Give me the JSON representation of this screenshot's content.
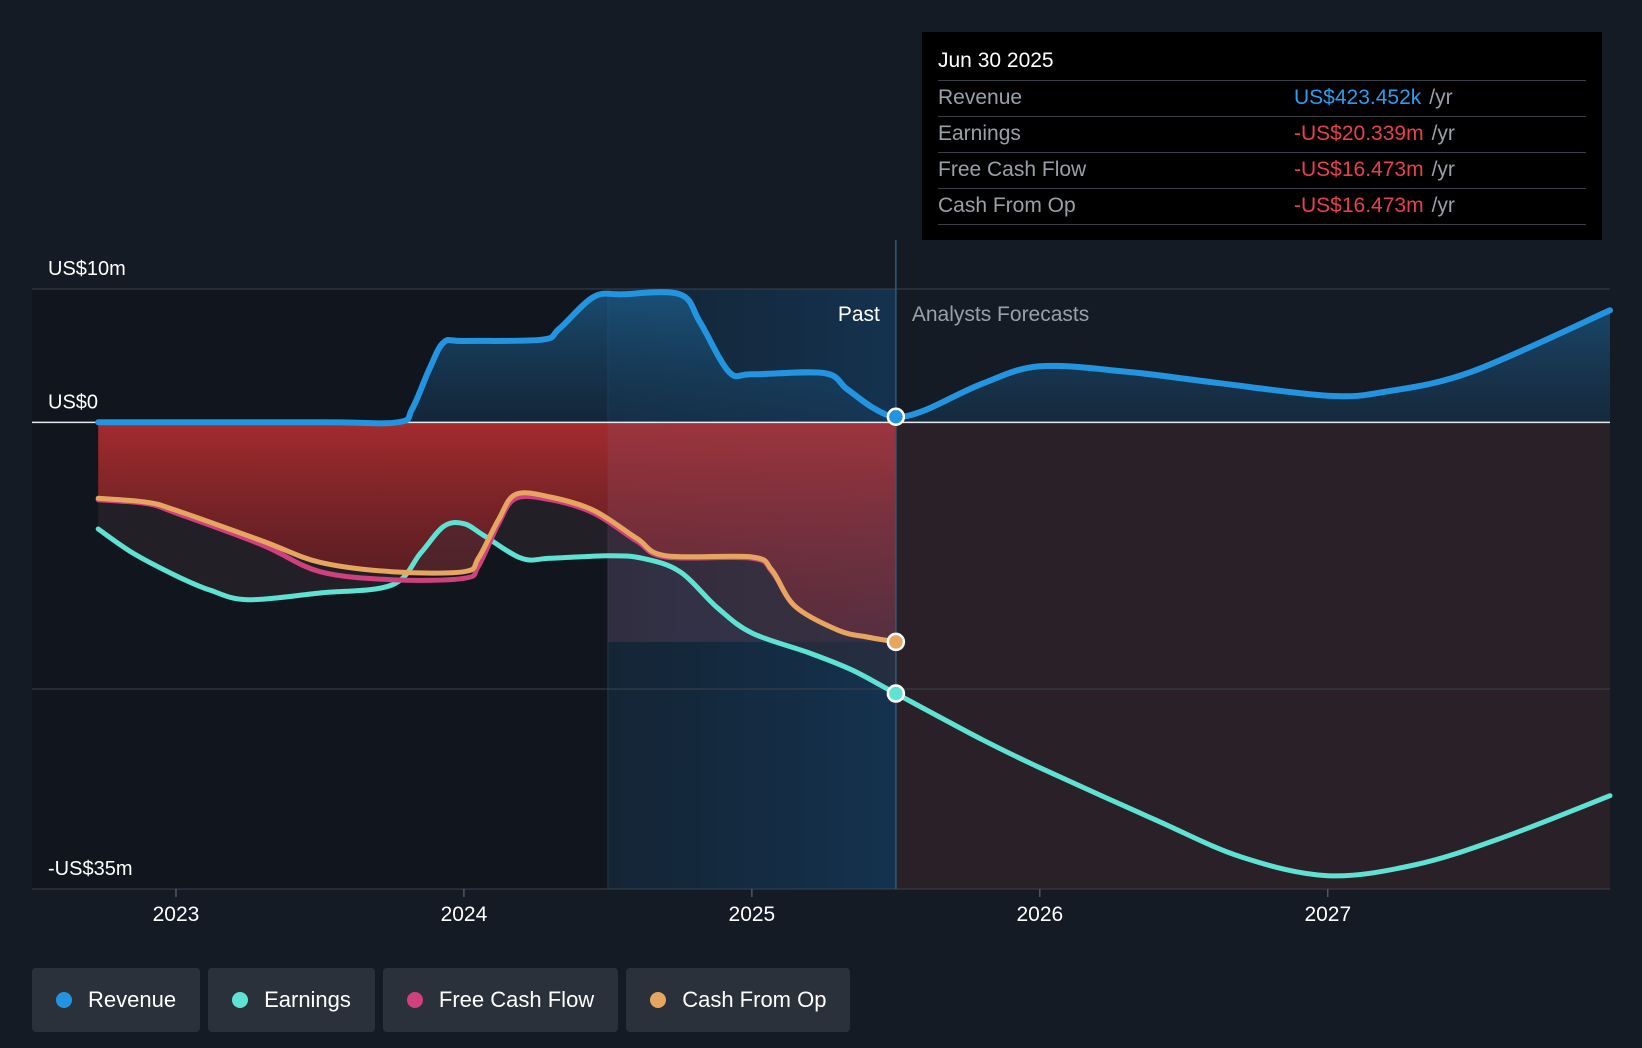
{
  "chart_data": {
    "type": "line",
    "title": "",
    "xlabel": "",
    "ylabel": "",
    "x_ticks": [
      "2023",
      "2024",
      "2025",
      "2026",
      "2027"
    ],
    "xlim": [
      2022.5,
      2027.98
    ],
    "ylim": [
      -35,
      10
    ],
    "y_axis_labels": [
      "US$10m",
      "US$0",
      "-US$35m"
    ],
    "divider_date": 2025.5,
    "past_shaded_from": 2024.5,
    "past_label": "Past",
    "forecast_label": "Analysts Forecasts",
    "series": [
      {
        "name": "Revenue",
        "unit": "US$m",
        "color": "#2394e0",
        "points": [
          [
            2022.73,
            0
          ],
          [
            2023.5,
            0
          ],
          [
            2023.77,
            0
          ],
          [
            2023.82,
            1
          ],
          [
            2023.88,
            4
          ],
          [
            2023.93,
            6
          ],
          [
            2024.0,
            6.1
          ],
          [
            2024.27,
            6.2
          ],
          [
            2024.33,
            7
          ],
          [
            2024.45,
            9.4
          ],
          [
            2024.55,
            9.6
          ],
          [
            2024.75,
            9.6
          ],
          [
            2024.82,
            7.5
          ],
          [
            2024.92,
            3.8
          ],
          [
            2025.0,
            3.6
          ],
          [
            2025.25,
            3.7
          ],
          [
            2025.33,
            2.5
          ],
          [
            2025.42,
            1.1
          ],
          [
            2025.5,
            0.42
          ],
          [
            2025.6,
            0.9
          ],
          [
            2025.8,
            2.9
          ],
          [
            2026.0,
            4.2
          ],
          [
            2026.3,
            3.8
          ],
          [
            2026.6,
            3.0
          ],
          [
            2027.0,
            2.0
          ],
          [
            2027.2,
            2.3
          ],
          [
            2027.5,
            3.8
          ],
          [
            2027.98,
            8.4
          ]
        ]
      },
      {
        "name": "Earnings",
        "unit": "US$m",
        "color": "#5ee2d4",
        "points": [
          [
            2022.73,
            -8
          ],
          [
            2022.85,
            -9.8
          ],
          [
            2023.0,
            -11.5
          ],
          [
            2023.12,
            -12.6
          ],
          [
            2023.25,
            -13.3
          ],
          [
            2023.5,
            -12.8
          ],
          [
            2023.75,
            -12.2
          ],
          [
            2023.85,
            -9.8
          ],
          [
            2023.93,
            -7.8
          ],
          [
            2024.0,
            -7.6
          ],
          [
            2024.07,
            -8.5
          ],
          [
            2024.2,
            -10.2
          ],
          [
            2024.3,
            -10.2
          ],
          [
            2024.5,
            -10
          ],
          [
            2024.62,
            -10.2
          ],
          [
            2024.75,
            -11.2
          ],
          [
            2024.88,
            -13.9
          ],
          [
            2025.0,
            -15.8
          ],
          [
            2025.2,
            -17.3
          ],
          [
            2025.35,
            -18.6
          ],
          [
            2025.5,
            -20.34
          ],
          [
            2025.8,
            -23.8
          ],
          [
            2026.0,
            -25.9
          ],
          [
            2026.4,
            -29.8
          ],
          [
            2026.7,
            -32.6
          ],
          [
            2027.0,
            -34
          ],
          [
            2027.3,
            -33.2
          ],
          [
            2027.6,
            -31.2
          ],
          [
            2027.98,
            -28
          ]
        ]
      },
      {
        "name": "Free Cash Flow",
        "unit": "US$m",
        "color": "#d0407e",
        "points": [
          [
            2022.73,
            -5.8
          ],
          [
            2022.9,
            -6.1
          ],
          [
            2023.0,
            -6.8
          ],
          [
            2023.3,
            -9.2
          ],
          [
            2023.5,
            -11.2
          ],
          [
            2023.75,
            -11.8
          ],
          [
            2024.0,
            -11.7
          ],
          [
            2024.05,
            -10.8
          ],
          [
            2024.12,
            -7.6
          ],
          [
            2024.18,
            -5.7
          ],
          [
            2024.3,
            -5.8
          ],
          [
            2024.45,
            -6.8
          ],
          [
            2024.6,
            -8.9
          ],
          [
            2024.7,
            -10.1
          ],
          [
            2025.0,
            -10.2
          ],
          [
            2025.07,
            -11.2
          ],
          [
            2025.15,
            -13.8
          ],
          [
            2025.3,
            -15.6
          ],
          [
            2025.4,
            -16.1
          ],
          [
            2025.5,
            -16.47
          ]
        ]
      },
      {
        "name": "Cash From Op",
        "unit": "US$m",
        "color": "#e6a660",
        "points": [
          [
            2022.73,
            -5.7
          ],
          [
            2022.9,
            -6
          ],
          [
            2023.0,
            -6.6
          ],
          [
            2023.3,
            -8.9
          ],
          [
            2023.5,
            -10.5
          ],
          [
            2023.75,
            -11.2
          ],
          [
            2024.0,
            -11.2
          ],
          [
            2024.05,
            -10.2
          ],
          [
            2024.12,
            -7.3
          ],
          [
            2024.18,
            -5.4
          ],
          [
            2024.3,
            -5.6
          ],
          [
            2024.45,
            -6.6
          ],
          [
            2024.6,
            -8.7
          ],
          [
            2024.7,
            -10.0
          ],
          [
            2025.0,
            -10.1
          ],
          [
            2025.07,
            -11.1
          ],
          [
            2025.15,
            -13.8
          ],
          [
            2025.3,
            -15.6
          ],
          [
            2025.4,
            -16.1
          ],
          [
            2025.5,
            -16.47
          ]
        ]
      }
    ],
    "tooltip": {
      "date": "Jun 30 2025",
      "rows": [
        {
          "label": "Revenue",
          "value": "US$423.452k",
          "unit": "/yr",
          "kind": "rev"
        },
        {
          "label": "Earnings",
          "value": "-US$20.339m",
          "unit": "/yr",
          "kind": "neg"
        },
        {
          "label": "Free Cash Flow",
          "value": "-US$16.473m",
          "unit": "/yr",
          "kind": "neg"
        },
        {
          "label": "Cash From Op",
          "value": "-US$16.473m",
          "unit": "/yr",
          "kind": "neg"
        }
      ]
    },
    "legend": [
      {
        "label": "Revenue",
        "color": "#2394e0"
      },
      {
        "label": "Earnings",
        "color": "#5ee2d4"
      },
      {
        "label": "Free Cash Flow",
        "color": "#d0407e"
      },
      {
        "label": "Cash From Op",
        "color": "#e6a660"
      }
    ]
  }
}
